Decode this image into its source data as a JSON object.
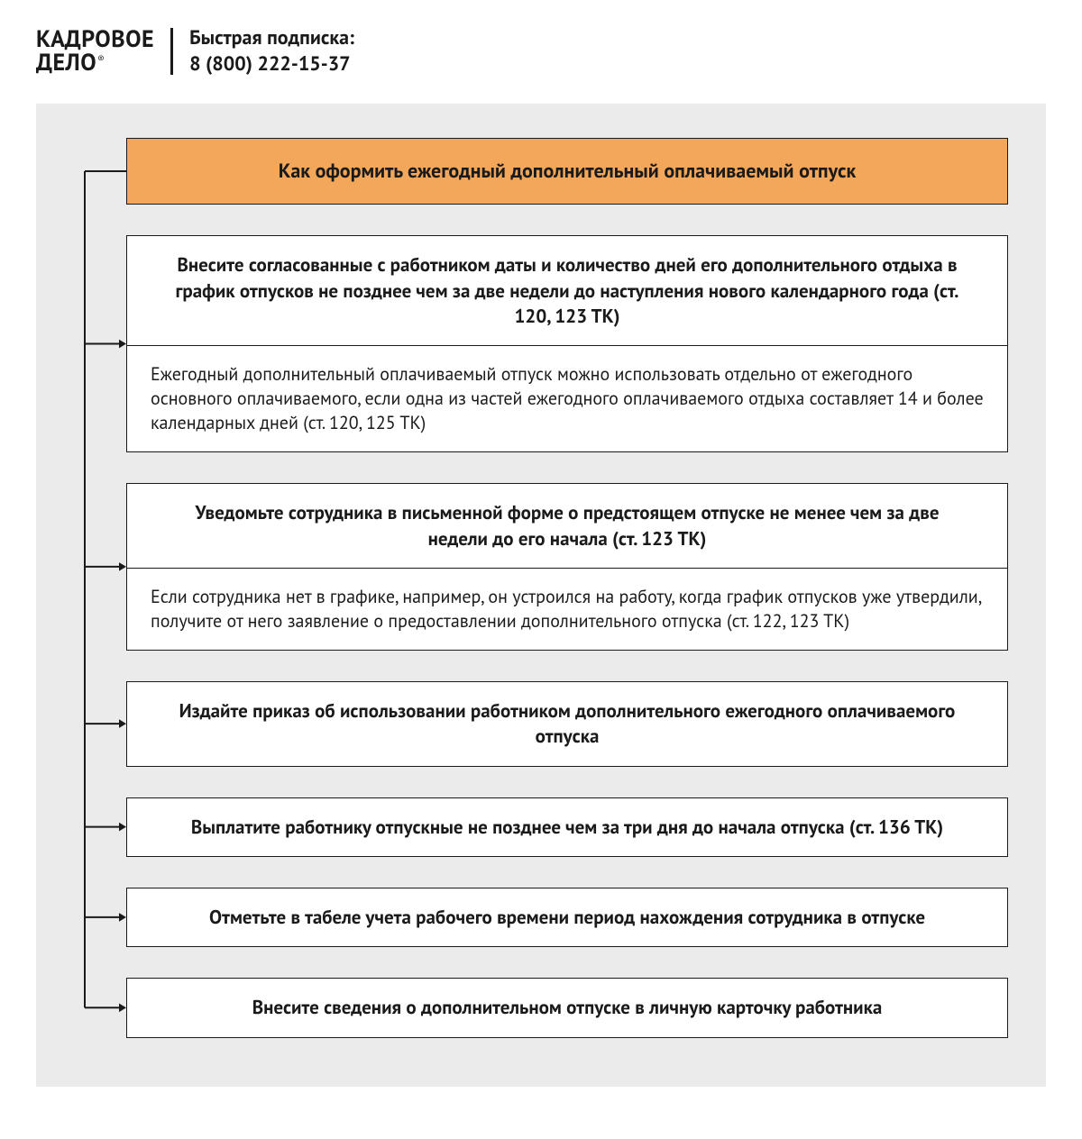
{
  "header": {
    "logo_line1": "КАДРОВОЕ",
    "logo_line2": "ДЕЛО",
    "subscribe_label": "Быстрая подписка:",
    "subscribe_phone": "8 (800) 222-15-37"
  },
  "flowchart": {
    "type": "flowchart",
    "background_color": "#ebebeb",
    "box_border_color": "#1a1a1a",
    "box_background": "#ffffff",
    "title_background": "#f2a75b",
    "connector_color": "#1a1a1a",
    "connector_stroke_width": 2,
    "arrow_size": 8,
    "title_fontsize": 22,
    "header_fontsize": 21,
    "note_fontsize": 20,
    "font_weight_header": 700,
    "title": "Как оформить ежегодный дополнительный оплачиваемый отпуск",
    "steps": [
      {
        "header": "Внесите согласованные с работником даты и количество дней его дополнительного отдыха в график отпусков не позднее чем за две недели до наступления нового календарного года (ст. 120, 123 ТК)",
        "note": "Ежегодный дополнительный оплачиваемый отпуск можно использовать отдельно от ежегодного основного оплачиваемого, если одна из частей ежегодного оплачиваемого отдыха составляет 14 и более календарных дней (ст. 120, 125 ТК)"
      },
      {
        "header": "Уведомьте сотрудника в письменной форме о предстоящем отпуске не менее чем за две недели до его начала (ст. 123 ТК)",
        "note": "Если сотрудника нет в графике, например, он устроился на работу, когда график отпусков уже утвердили, получите от него заявление о предоставлении дополнительного отпуска (ст. 122, 123 ТК)"
      },
      {
        "header": "Издайте приказ об использовании работником дополнительного ежегодного оплачиваемого отпуска"
      },
      {
        "header": "Выплатите работнику отпускные не позднее чем за три дня до начала отпуска (ст. 136 ТК)"
      },
      {
        "header": "Отметьте в табеле учета рабочего времени период нахождения сотрудника в отпуске"
      },
      {
        "header": "Внесите сведения о дополнительном отпуске в личную карточку работника"
      }
    ]
  }
}
